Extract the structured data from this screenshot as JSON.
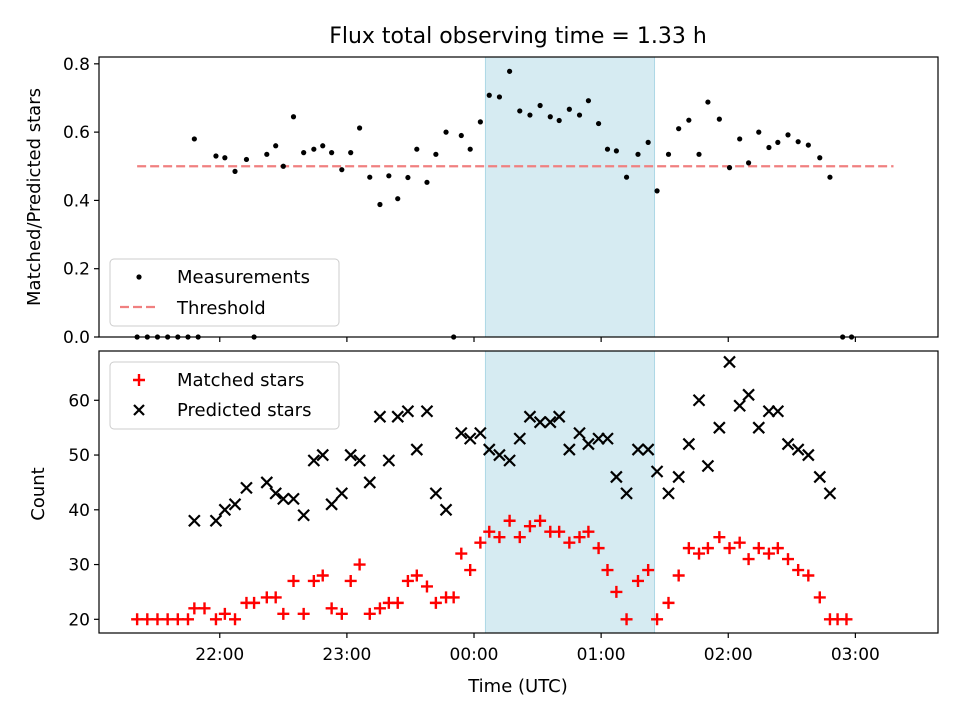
{
  "chart_data": {
    "type": "scatter",
    "title": "Flux total observing time = 1.33 h",
    "xlabel": "Time (UTC)",
    "x_ticks": [
      {
        "t": -2.0,
        "label": "22:00"
      },
      {
        "t": -1.0,
        "label": "23:00"
      },
      {
        "t": 0.0,
        "label": "00:00"
      },
      {
        "t": 1.0,
        "label": "01:00"
      },
      {
        "t": 2.0,
        "label": "02:00"
      },
      {
        "t": 3.0,
        "label": "03:00"
      }
    ],
    "x_range": [
      -2.95,
      3.65
    ],
    "highlight_window": {
      "start": 0.09,
      "end": 1.42,
      "color": "#add8e6"
    },
    "top_panel": {
      "ylabel": "Matched/Predicted stars",
      "ylim": [
        0,
        0.82
      ],
      "yticks": [
        "0.0",
        "0.2",
        "0.4",
        "0.6",
        "0.8"
      ],
      "threshold": 0.5,
      "threshold_range": [
        -2.65,
        3.3
      ],
      "legend": {
        "position": "lower left",
        "measurements": "Measurements",
        "threshold": "Threshold"
      },
      "measurements": [
        [
          -2.65,
          0
        ],
        [
          -2.57,
          0
        ],
        [
          -2.49,
          0
        ],
        [
          -2.41,
          0
        ],
        [
          -2.33,
          0
        ],
        [
          -2.25,
          0
        ],
        [
          -2.2,
          0.58
        ],
        [
          -2.17,
          0
        ],
        [
          -2.03,
          0.53
        ],
        [
          -1.96,
          0.525
        ],
        [
          -1.88,
          0.485
        ],
        [
          -1.79,
          0.52
        ],
        [
          -1.73,
          0
        ],
        [
          -1.63,
          0.535
        ],
        [
          -1.56,
          0.56
        ],
        [
          -1.5,
          0.5
        ],
        [
          -1.42,
          0.645
        ],
        [
          -1.34,
          0.54
        ],
        [
          -1.26,
          0.55
        ],
        [
          -1.19,
          0.56
        ],
        [
          -1.12,
          0.54
        ],
        [
          -1.04,
          0.49
        ],
        [
          -0.97,
          0.54
        ],
        [
          -0.9,
          0.612
        ],
        [
          -0.82,
          0.468
        ],
        [
          -0.74,
          0.388
        ],
        [
          -0.67,
          0.472
        ],
        [
          -0.6,
          0.405
        ],
        [
          -0.52,
          0.467
        ],
        [
          -0.45,
          0.55
        ],
        [
          -0.37,
          0.453
        ],
        [
          -0.3,
          0.535
        ],
        [
          -0.22,
          0.6
        ],
        [
          -0.16,
          0
        ],
        [
          -0.1,
          0.59
        ],
        [
          -0.03,
          0.55
        ],
        [
          0.05,
          0.63
        ],
        [
          0.12,
          0.708
        ],
        [
          0.2,
          0.703
        ],
        [
          0.28,
          0.778
        ],
        [
          0.36,
          0.662
        ],
        [
          0.44,
          0.65
        ],
        [
          0.52,
          0.678
        ],
        [
          0.6,
          0.645
        ],
        [
          0.67,
          0.634
        ],
        [
          0.75,
          0.667
        ],
        [
          0.83,
          0.65
        ],
        [
          0.9,
          0.692
        ],
        [
          0.98,
          0.625
        ],
        [
          1.05,
          0.55
        ],
        [
          1.12,
          0.545
        ],
        [
          1.2,
          0.468
        ],
        [
          1.29,
          0.535
        ],
        [
          1.37,
          0.57
        ],
        [
          1.44,
          0.428
        ],
        [
          1.53,
          0.535
        ],
        [
          1.61,
          0.61
        ],
        [
          1.69,
          0.635
        ],
        [
          1.77,
          0.535
        ],
        [
          1.84,
          0.688
        ],
        [
          1.93,
          0.638
        ],
        [
          2.01,
          0.496
        ],
        [
          2.09,
          0.58
        ],
        [
          2.16,
          0.51
        ],
        [
          2.24,
          0.6
        ],
        [
          2.32,
          0.555
        ],
        [
          2.39,
          0.57
        ],
        [
          2.47,
          0.592
        ],
        [
          2.55,
          0.572
        ],
        [
          2.63,
          0.562
        ],
        [
          2.72,
          0.525
        ],
        [
          2.8,
          0.468
        ],
        [
          2.9,
          0
        ],
        [
          2.97,
          0
        ]
      ]
    },
    "bottom_panel": {
      "ylabel": "Count",
      "ylim": [
        17.5,
        69
      ],
      "yticks": [
        "20",
        "30",
        "40",
        "50",
        "60"
      ],
      "legend": {
        "position": "upper left",
        "matched": "Matched stars",
        "predicted": "Predicted stars"
      },
      "matched_color": "#ff0000",
      "predicted_color": "#000000",
      "matched": [
        [
          -2.65,
          20
        ],
        [
          -2.57,
          20
        ],
        [
          -2.49,
          20
        ],
        [
          -2.41,
          20
        ],
        [
          -2.33,
          20
        ],
        [
          -2.25,
          20
        ],
        [
          -2.2,
          22
        ],
        [
          -2.12,
          22
        ],
        [
          -2.03,
          20
        ],
        [
          -1.96,
          21
        ],
        [
          -1.88,
          20
        ],
        [
          -1.79,
          23
        ],
        [
          -1.73,
          23
        ],
        [
          -1.63,
          24
        ],
        [
          -1.56,
          24
        ],
        [
          -1.5,
          21
        ],
        [
          -1.42,
          27
        ],
        [
          -1.34,
          21
        ],
        [
          -1.26,
          27
        ],
        [
          -1.19,
          28
        ],
        [
          -1.12,
          22
        ],
        [
          -1.04,
          21
        ],
        [
          -0.97,
          27
        ],
        [
          -0.9,
          30
        ],
        [
          -0.82,
          21
        ],
        [
          -0.74,
          22
        ],
        [
          -0.67,
          23
        ],
        [
          -0.6,
          23
        ],
        [
          -0.52,
          27
        ],
        [
          -0.45,
          28
        ],
        [
          -0.37,
          26
        ],
        [
          -0.3,
          23
        ],
        [
          -0.22,
          24
        ],
        [
          -0.16,
          24
        ],
        [
          -0.1,
          32
        ],
        [
          -0.03,
          29
        ],
        [
          0.05,
          34
        ],
        [
          0.12,
          36
        ],
        [
          0.2,
          35
        ],
        [
          0.28,
          38
        ],
        [
          0.36,
          35
        ],
        [
          0.44,
          37
        ],
        [
          0.52,
          38
        ],
        [
          0.6,
          36
        ],
        [
          0.67,
          36
        ],
        [
          0.75,
          34
        ],
        [
          0.83,
          35
        ],
        [
          0.9,
          36
        ],
        [
          0.98,
          33
        ],
        [
          1.05,
          29
        ],
        [
          1.12,
          25
        ],
        [
          1.2,
          20
        ],
        [
          1.29,
          27
        ],
        [
          1.37,
          29
        ],
        [
          1.44,
          20
        ],
        [
          1.53,
          23
        ],
        [
          1.61,
          28
        ],
        [
          1.69,
          33
        ],
        [
          1.77,
          32
        ],
        [
          1.84,
          33
        ],
        [
          1.93,
          35
        ],
        [
          2.01,
          33
        ],
        [
          2.09,
          34
        ],
        [
          2.16,
          31
        ],
        [
          2.24,
          33
        ],
        [
          2.32,
          32
        ],
        [
          2.39,
          33
        ],
        [
          2.47,
          31
        ],
        [
          2.55,
          29
        ],
        [
          2.63,
          28
        ],
        [
          2.72,
          24
        ],
        [
          2.8,
          20
        ],
        [
          2.86,
          20
        ],
        [
          2.93,
          20
        ]
      ],
      "predicted": [
        [
          -2.2,
          38
        ],
        [
          -2.03,
          38
        ],
        [
          -1.96,
          40
        ],
        [
          -1.88,
          41
        ],
        [
          -1.79,
          44
        ],
        [
          -1.63,
          45
        ],
        [
          -1.56,
          43
        ],
        [
          -1.5,
          42
        ],
        [
          -1.42,
          42
        ],
        [
          -1.34,
          39
        ],
        [
          -1.26,
          49
        ],
        [
          -1.19,
          50
        ],
        [
          -1.12,
          41
        ],
        [
          -1.04,
          43
        ],
        [
          -0.97,
          50
        ],
        [
          -0.9,
          49
        ],
        [
          -0.82,
          45
        ],
        [
          -0.74,
          57
        ],
        [
          -0.67,
          49
        ],
        [
          -0.6,
          57
        ],
        [
          -0.52,
          58
        ],
        [
          -0.45,
          51
        ],
        [
          -0.37,
          58
        ],
        [
          -0.3,
          43
        ],
        [
          -0.22,
          40
        ],
        [
          -0.1,
          54
        ],
        [
          -0.03,
          53
        ],
        [
          0.05,
          54
        ],
        [
          0.12,
          51
        ],
        [
          0.2,
          50
        ],
        [
          0.28,
          49
        ],
        [
          0.36,
          53
        ],
        [
          0.44,
          57
        ],
        [
          0.52,
          56
        ],
        [
          0.6,
          56
        ],
        [
          0.67,
          57
        ],
        [
          0.75,
          51
        ],
        [
          0.83,
          54
        ],
        [
          0.9,
          52
        ],
        [
          0.98,
          53
        ],
        [
          1.05,
          53
        ],
        [
          1.12,
          46
        ],
        [
          1.2,
          43
        ],
        [
          1.29,
          51
        ],
        [
          1.37,
          51
        ],
        [
          1.44,
          47
        ],
        [
          1.53,
          43
        ],
        [
          1.61,
          46
        ],
        [
          1.69,
          52
        ],
        [
          1.77,
          60
        ],
        [
          1.84,
          48
        ],
        [
          1.93,
          55
        ],
        [
          2.01,
          67
        ],
        [
          2.09,
          59
        ],
        [
          2.16,
          61
        ],
        [
          2.24,
          55
        ],
        [
          2.32,
          58
        ],
        [
          2.39,
          58
        ],
        [
          2.47,
          52
        ],
        [
          2.55,
          51
        ],
        [
          2.63,
          50
        ],
        [
          2.72,
          46
        ],
        [
          2.8,
          43
        ]
      ]
    }
  }
}
